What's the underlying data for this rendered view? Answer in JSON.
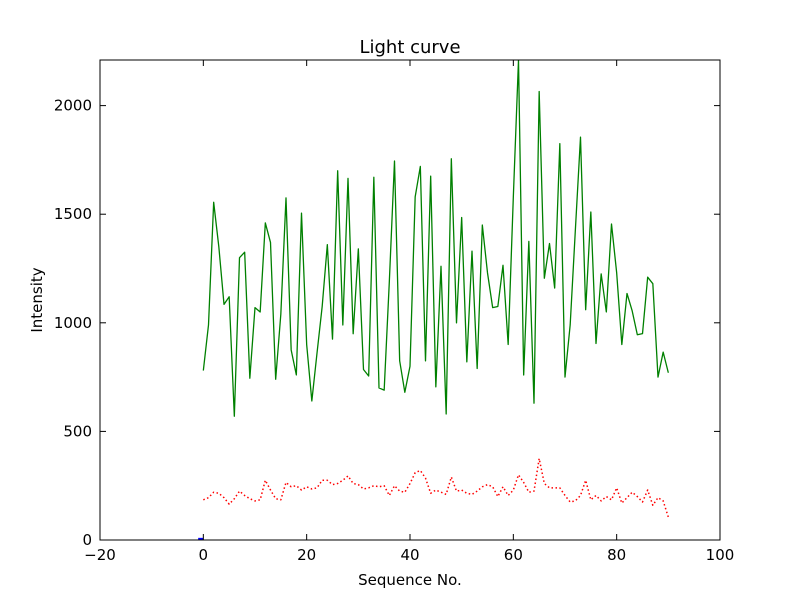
{
  "chart_data": {
    "type": "line",
    "title": "Light curve",
    "xlabel": "Sequence No.",
    "ylabel": "Intensity",
    "xlim": [
      -20,
      100
    ],
    "ylim": [
      0,
      2210
    ],
    "xticks": [
      -20,
      0,
      20,
      40,
      60,
      80,
      100
    ],
    "yticks": [
      0,
      500,
      1000,
      1500,
      2000
    ],
    "grid": false,
    "legend": "none",
    "series": [
      {
        "color": "#008000",
        "style": "solid",
        "x": [
          0,
          1,
          2,
          3,
          4,
          5,
          6,
          7,
          8,
          9,
          10,
          11,
          12,
          13,
          14,
          15,
          16,
          17,
          18,
          19,
          20,
          21,
          22,
          23,
          24,
          25,
          26,
          27,
          28,
          29,
          30,
          31,
          32,
          33,
          34,
          35,
          36,
          37,
          38,
          39,
          40,
          41,
          42,
          43,
          44,
          45,
          46,
          47,
          48,
          49,
          50,
          51,
          52,
          53,
          54,
          55,
          56,
          57,
          58,
          59,
          60,
          61,
          62,
          63,
          64,
          65,
          66,
          67,
          68,
          69,
          70,
          71,
          72,
          73,
          74,
          75,
          76,
          77,
          78,
          79,
          80,
          81,
          82,
          83,
          84,
          85,
          86,
          87,
          88,
          89,
          90
        ],
        "y": [
          780,
          990,
          1555,
          1350,
          1085,
          1120,
          570,
          1300,
          1325,
          745,
          1070,
          1050,
          1460,
          1370,
          740,
          1040,
          1575,
          875,
          760,
          1505,
          900,
          640,
          860,
          1075,
          1360,
          925,
          1700,
          990,
          1665,
          950,
          1340,
          785,
          755,
          1670,
          700,
          690,
          1190,
          1745,
          825,
          680,
          800,
          1580,
          1720,
          825,
          1675,
          705,
          1260,
          580,
          1755,
          1000,
          1485,
          820,
          1330,
          790,
          1450,
          1230,
          1070,
          1075,
          1265,
          900,
          1580,
          2210,
          760,
          1375,
          630,
          2065,
          1205,
          1365,
          1160,
          1825,
          750,
          990,
          1425,
          1855,
          1060,
          1510,
          905,
          1225,
          1050,
          1455,
          1230,
          900,
          1135,
          1055,
          945,
          950,
          1210,
          1180,
          750,
          865,
          770
        ]
      },
      {
        "color": "#ff0000",
        "style": "dotted",
        "x": [
          0,
          1,
          2,
          3,
          4,
          5,
          6,
          7,
          8,
          9,
          10,
          11,
          12,
          13,
          14,
          15,
          16,
          17,
          18,
          19,
          20,
          21,
          22,
          23,
          24,
          25,
          26,
          27,
          28,
          29,
          30,
          31,
          32,
          33,
          34,
          35,
          36,
          37,
          38,
          39,
          40,
          41,
          42,
          43,
          44,
          45,
          46,
          47,
          48,
          49,
          50,
          51,
          52,
          53,
          54,
          55,
          56,
          57,
          58,
          59,
          60,
          61,
          62,
          63,
          64,
          65,
          66,
          67,
          68,
          69,
          70,
          71,
          72,
          73,
          74,
          75,
          76,
          77,
          78,
          79,
          80,
          81,
          82,
          83,
          84,
          85,
          86,
          87,
          88,
          89,
          90
        ],
        "y": [
          185,
          195,
          220,
          215,
          195,
          165,
          190,
          225,
          205,
          190,
          180,
          185,
          275,
          230,
          190,
          185,
          265,
          245,
          250,
          230,
          245,
          235,
          240,
          275,
          275,
          255,
          260,
          275,
          295,
          260,
          255,
          235,
          240,
          250,
          245,
          250,
          205,
          250,
          225,
          220,
          260,
          310,
          320,
          285,
          215,
          230,
          220,
          210,
          290,
          225,
          230,
          215,
          210,
          225,
          245,
          255,
          245,
          200,
          245,
          205,
          230,
          300,
          265,
          220,
          225,
          375,
          260,
          240,
          240,
          240,
          205,
          175,
          180,
          205,
          275,
          185,
          205,
          180,
          200,
          185,
          240,
          170,
          195,
          220,
          200,
          175,
          230,
          160,
          195,
          180,
          105
        ]
      },
      {
        "color": "#0000ff",
        "style": "solid",
        "x": [
          -1,
          0
        ],
        "y": [
          3,
          3
        ]
      }
    ]
  }
}
